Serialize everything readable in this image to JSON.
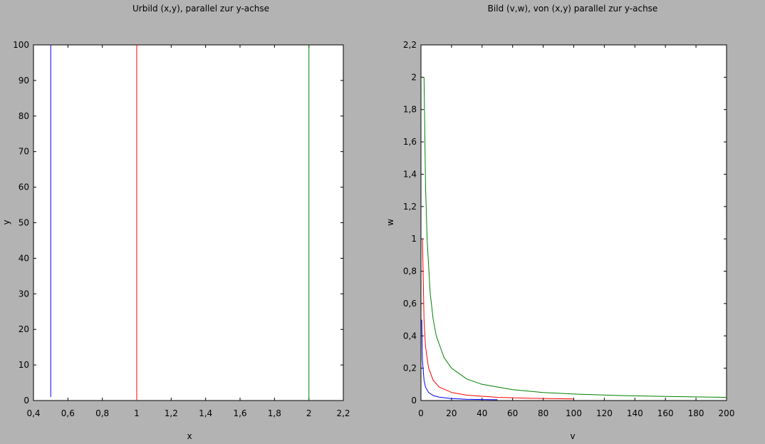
{
  "chart_data": [
    {
      "type": "line",
      "title": "Urbild (x,y), parallel zur y-achse",
      "xlabel": "x",
      "ylabel": "y",
      "xlim": [
        0.4,
        2.2
      ],
      "ylim": [
        0,
        100
      ],
      "x_ticks": [
        0.4,
        0.6,
        0.8,
        1.0,
        1.2,
        1.4,
        1.6,
        1.8,
        2.0,
        2.2
      ],
      "x_tick_labels": [
        "0,4",
        "0,6",
        "0,8",
        "1",
        "1,2",
        "1,4",
        "1,6",
        "1,8",
        "2",
        "2,2"
      ],
      "y_ticks": [
        0,
        10,
        20,
        30,
        40,
        50,
        60,
        70,
        80,
        90,
        100
      ],
      "y_tick_labels": [
        "0",
        "10",
        "20",
        "30",
        "40",
        "50",
        "60",
        "70",
        "80",
        "90",
        "100"
      ],
      "grid": false,
      "series": [
        {
          "color": "#0000ff",
          "x": [
            0.5,
            0.5
          ],
          "y": [
            1,
            100
          ]
        },
        {
          "color": "#ff0000",
          "x": [
            1,
            1
          ],
          "y": [
            0,
            100
          ]
        },
        {
          "color": "#008000",
          "x": [
            2,
            2
          ],
          "y": [
            0,
            100
          ]
        }
      ]
    },
    {
      "type": "line",
      "title": "Bild (v,w), von (x,y) parallel zur y-achse",
      "xlabel": "v",
      "ylabel": "w",
      "xlim": [
        0,
        200
      ],
      "ylim": [
        0,
        2.2
      ],
      "x_ticks": [
        0,
        20,
        40,
        60,
        80,
        100,
        120,
        140,
        160,
        180,
        200
      ],
      "x_tick_labels": [
        "0",
        "20",
        "40",
        "60",
        "80",
        "100",
        "120",
        "140",
        "160",
        "180",
        "200"
      ],
      "y_ticks": [
        0,
        0.2,
        0.4,
        0.6,
        0.8,
        1.0,
        1.2,
        1.4,
        1.6,
        1.8,
        2.0,
        2.2
      ],
      "y_tick_labels": [
        "0",
        "0,2",
        "0,4",
        "0,6",
        "0,8",
        "1",
        "1,2",
        "1,4",
        "1,6",
        "1,8",
        "2",
        "2,2"
      ],
      "grid": false,
      "series": [
        {
          "color": "#0000ff",
          "x": [
            0.5,
            1,
            2,
            3,
            5,
            8,
            12,
            20,
            30,
            40,
            50
          ],
          "y": [
            0.5,
            0.25,
            0.125,
            0.083,
            0.05,
            0.031,
            0.021,
            0.0125,
            0.008,
            0.006,
            0.005
          ]
        },
        {
          "color": "#ff0000",
          "x": [
            1,
            2,
            3,
            5,
            8,
            12,
            20,
            30,
            50,
            70,
            100
          ],
          "y": [
            1.0,
            0.5,
            0.333,
            0.2,
            0.125,
            0.083,
            0.05,
            0.033,
            0.02,
            0.014,
            0.01
          ]
        },
        {
          "color": "#008000",
          "x": [
            2,
            3,
            4,
            6,
            8,
            10,
            15,
            20,
            30,
            40,
            60,
            80,
            100,
            130,
            160,
            200
          ],
          "y": [
            2.0,
            1.333,
            1.0,
            0.667,
            0.5,
            0.4,
            0.267,
            0.2,
            0.133,
            0.1,
            0.067,
            0.05,
            0.04,
            0.031,
            0.025,
            0.02
          ]
        }
      ]
    }
  ]
}
